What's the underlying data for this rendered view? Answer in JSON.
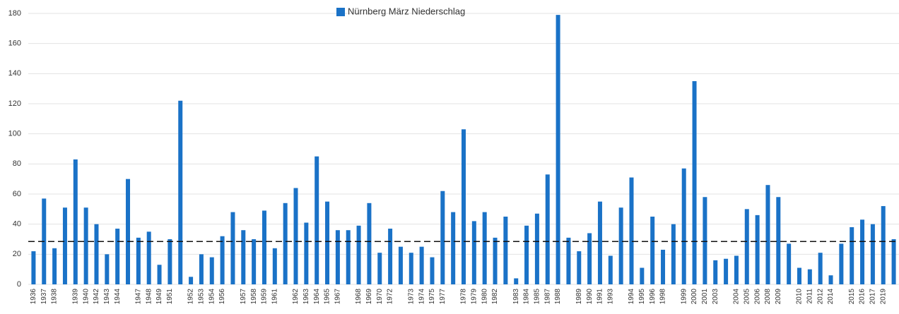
{
  "chart_data": {
    "type": "bar",
    "series": [
      {
        "name": "Nürnberg März Niederschlag",
        "color": "#1a72c7",
        "values": [
          22,
          57,
          24,
          51,
          83,
          51,
          40,
          20,
          37,
          70,
          31,
          35,
          13,
          30,
          122,
          5,
          20,
          18,
          32,
          48,
          36,
          30,
          49,
          24,
          54,
          64,
          41,
          85,
          55,
          36,
          36,
          39,
          54,
          21,
          37,
          25,
          21,
          25,
          18,
          62,
          48,
          103,
          42,
          48,
          31,
          45,
          4,
          39,
          47,
          73,
          179,
          31,
          22,
          34,
          55,
          19,
          51,
          71,
          11,
          45,
          23,
          40,
          77,
          135,
          58,
          16,
          17,
          19,
          50,
          46,
          66,
          58,
          27,
          11,
          10,
          21,
          6,
          27,
          38,
          43,
          40,
          52,
          30
        ]
      }
    ],
    "categories": [
      "1936",
      "1937",
      "1938",
      null,
      "1939",
      "1940",
      "1942",
      "1943",
      "1944",
      null,
      "1947",
      "1948",
      "1949",
      "1951",
      null,
      "1952",
      "1953",
      "1954",
      "1956",
      null,
      "1957",
      "1958",
      "1959",
      "1961",
      null,
      "1962",
      "1963",
      "1964",
      "1965",
      "1967",
      null,
      "1968",
      "1969",
      "1970",
      "1972",
      null,
      "1973",
      "1974",
      "1975",
      "1977",
      null,
      "1978",
      "1979",
      "1980",
      "1982",
      null,
      "1983",
      "1984",
      "1985",
      "1987",
      "1988",
      null,
      "1989",
      "1990",
      "1991",
      "1993",
      null,
      "1994",
      "1995",
      "1996",
      "1998",
      null,
      "1999",
      "2000",
      "2001",
      "2003",
      null,
      "2004",
      "2005",
      "2006",
      "2008",
      "2009",
      null,
      "2010",
      "2011",
      "2012",
      "2014",
      null,
      "2015",
      "2016",
      "2017",
      "2019",
      null
    ],
    "ylim": [
      0,
      180
    ],
    "yticks": [
      0,
      20,
      40,
      60,
      80,
      100,
      120,
      140,
      160,
      180
    ],
    "grid": true,
    "legend": "top",
    "reference_line": 28.5
  }
}
